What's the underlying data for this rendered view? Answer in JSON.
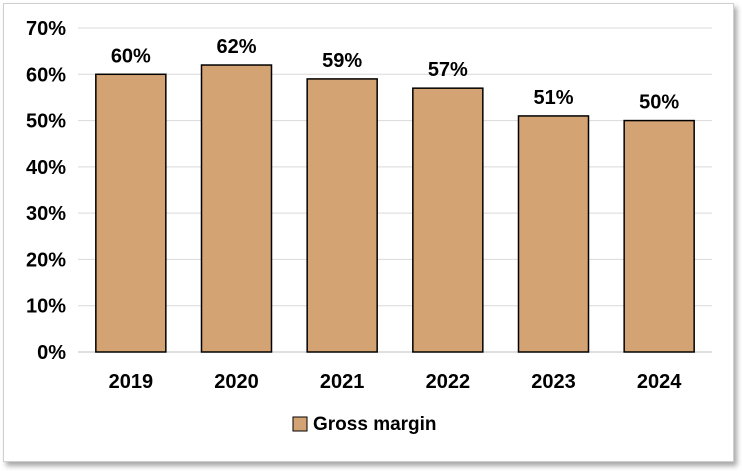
{
  "chart_data": {
    "type": "bar",
    "categories": [
      "2019",
      "2020",
      "2021",
      "2022",
      "2023",
      "2024"
    ],
    "series": [
      {
        "name": "Gross margin",
        "values": [
          60,
          62,
          59,
          57,
          51,
          50
        ],
        "labels": [
          "60%",
          "62%",
          "59%",
          "57%",
          "51%",
          "50%"
        ]
      }
    ],
    "title": "",
    "xlabel": "",
    "ylabel": "",
    "ylim": [
      0,
      70
    ],
    "y_ticks": [
      0,
      10,
      20,
      30,
      40,
      50,
      60,
      70
    ],
    "y_tick_labels": [
      "0%",
      "10%",
      "20%",
      "30%",
      "40%",
      "50%",
      "60%",
      "70%"
    ],
    "grid": true,
    "legend_position": "bottom",
    "colors": {
      "bar_fill": "#D4A373",
      "bar_stroke": "#000000",
      "grid": "#d9d9d9"
    }
  }
}
